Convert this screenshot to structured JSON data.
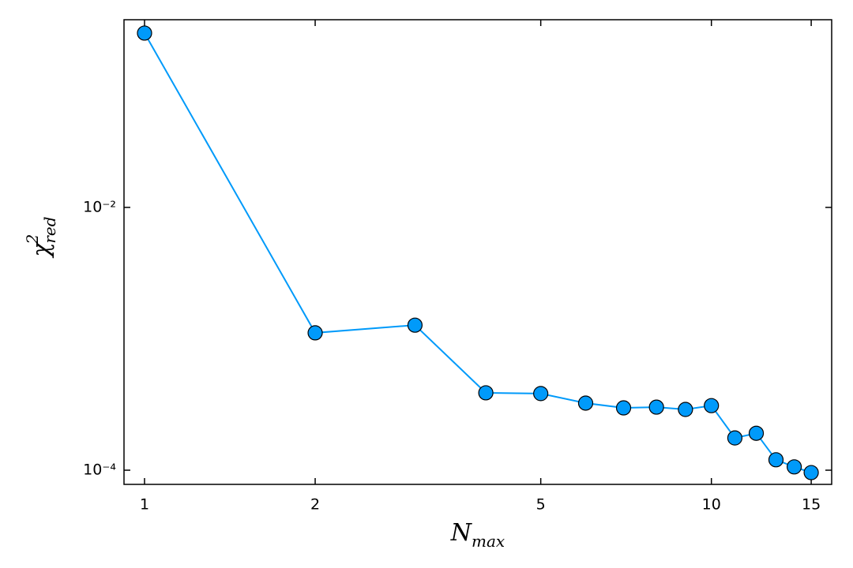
{
  "chart_data": {
    "type": "line",
    "x": [
      1,
      2,
      3,
      4,
      5,
      6,
      7,
      8,
      9,
      10,
      11,
      12,
      13,
      14,
      15
    ],
    "values": [
      0.212,
      0.00111,
      0.00127,
      0.000388,
      0.000383,
      0.000324,
      0.000298,
      0.000302,
      0.00029,
      0.00031,
      0.000176,
      0.000191,
      0.00012,
      0.000106,
      9.59e-05
    ],
    "color": "#009afa",
    "marker_edge_color": "#000000",
    "xlabel": {
      "text": "N",
      "subscript": "max"
    },
    "ylabel": {
      "text": "χ",
      "superscript": "2",
      "subscript": "red"
    },
    "xscale": "log",
    "yscale": "log",
    "xlim": [
      0.92,
      16.3
    ],
    "ylim": [
      7.8e-05,
      0.268
    ],
    "xticks": [
      1,
      2,
      5,
      10,
      15
    ],
    "yticks": [
      {
        "value": 0.0001,
        "label": "10⁻⁴"
      },
      {
        "value": 0.01,
        "label": "10⁻²"
      }
    ],
    "grid": false
  }
}
